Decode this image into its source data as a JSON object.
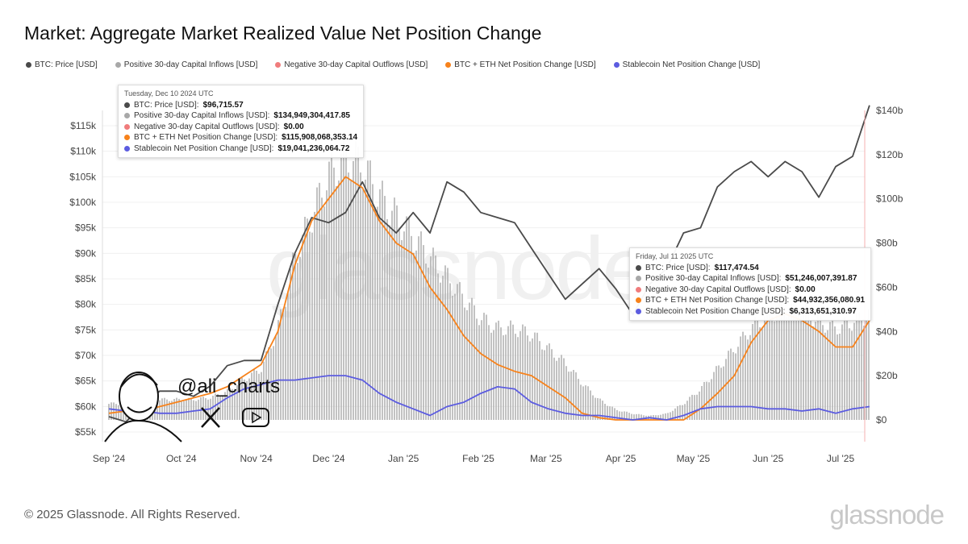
{
  "title": "Market: Aggregate Market Realized Value Net Position Change",
  "legend": [
    {
      "label": "BTC: Price [USD]",
      "color": "#4a4a4a"
    },
    {
      "label": "Positive 30-day Capital Inflows [USD]",
      "color": "#a8a8a8"
    },
    {
      "label": "Negative 30-day Capital Outflows [USD]",
      "color": "#f07c7c"
    },
    {
      "label": "BTC + ETH Net Position Change [USD]",
      "color": "#f7821b"
    },
    {
      "label": "Stablecoin Net Position Change [USD]",
      "color": "#5c5ce0"
    }
  ],
  "tooltips": [
    {
      "date": "Tuesday, Dec 10 2024 UTC",
      "rows": [
        {
          "label": "BTC: Price [USD]: ",
          "value": "$96,715.57",
          "color": "#4a4a4a"
        },
        {
          "label": "Positive 30-day Capital Inflows [USD]: ",
          "value": "$134,949,304,417.85",
          "color": "#a8a8a8"
        },
        {
          "label": "Negative 30-day Capital Outflows [USD]: ",
          "value": "$0.00",
          "color": "#f07c7c"
        },
        {
          "label": "BTC + ETH Net Position Change [USD]: ",
          "value": "$115,908,068,353.14",
          "color": "#f7821b"
        },
        {
          "label": "Stablecoin Net Position Change [USD]: ",
          "value": "$19,041,236,064.72",
          "color": "#5c5ce0"
        }
      ]
    },
    {
      "date": "Friday, Jul 11 2025 UTC",
      "rows": [
        {
          "label": "BTC: Price [USD]: ",
          "value": "$117,474.54",
          "color": "#4a4a4a"
        },
        {
          "label": "Positive 30-day Capital Inflows [USD]: ",
          "value": "$51,246,007,391.87",
          "color": "#a8a8a8"
        },
        {
          "label": "Negative 30-day Capital Outflows [USD]: ",
          "value": "$0.00",
          "color": "#f07c7c"
        },
        {
          "label": "BTC + ETH Net Position Change [USD]: ",
          "value": "$44,932,356,080.91",
          "color": "#f7821b"
        },
        {
          "label": "Stablecoin Net Position Change [USD]: ",
          "value": "$6,313,651,310.97",
          "color": "#5c5ce0"
        }
      ]
    }
  ],
  "watermark": "glassnode",
  "handle": "@ali_charts",
  "footer": "© 2025 Glassnode. All Rights Reserved.",
  "brand": "glassnode",
  "chart_data": {
    "type": "line",
    "title": "Market: Aggregate Market Realized Value Net Position Change",
    "x_ticks": [
      "Sep '24",
      "Oct '24",
      "Nov '24",
      "Dec '24",
      "Jan '25",
      "Feb '25",
      "Mar '25",
      "Apr '25",
      "May '25",
      "Jun '25",
      "Jul '25"
    ],
    "x_tick_dates": [
      "2024-09-01",
      "2024-10-01",
      "2024-11-01",
      "2024-12-01",
      "2025-01-01",
      "2025-02-01",
      "2025-03-01",
      "2025-04-01",
      "2025-05-01",
      "2025-06-01",
      "2025-07-01"
    ],
    "y_left": {
      "range": [
        53000,
        120000
      ],
      "ticks": [
        55000,
        60000,
        65000,
        70000,
        75000,
        80000,
        85000,
        90000,
        95000,
        100000,
        105000,
        110000,
        115000
      ],
      "labels": [
        "$55k",
        "$60k",
        "$65k",
        "$70k",
        "$75k",
        "$80k",
        "$85k",
        "$90k",
        "$95k",
        "$100k",
        "$105k",
        "$110k",
        "$115k"
      ]
    },
    "y_right": {
      "range": [
        -10,
        140
      ],
      "ticks": [
        0,
        20,
        40,
        60,
        80,
        100,
        120,
        140
      ],
      "labels": [
        "$0",
        "$20b",
        "$40b",
        "$60b",
        "$80b",
        "$100b",
        "$120b",
        "$140b"
      ],
      "unit": "billion USD"
    },
    "x": [
      "2024-09-01",
      "2024-09-08",
      "2024-09-15",
      "2024-09-22",
      "2024-09-29",
      "2024-10-06",
      "2024-10-13",
      "2024-10-20",
      "2024-10-27",
      "2024-11-03",
      "2024-11-10",
      "2024-11-17",
      "2024-11-24",
      "2024-12-01",
      "2024-12-08",
      "2024-12-15",
      "2024-12-22",
      "2024-12-29",
      "2025-01-05",
      "2025-01-12",
      "2025-01-19",
      "2025-01-26",
      "2025-02-02",
      "2025-02-09",
      "2025-02-16",
      "2025-02-23",
      "2025-03-02",
      "2025-03-09",
      "2025-03-16",
      "2025-03-23",
      "2025-03-30",
      "2025-04-06",
      "2025-04-13",
      "2025-04-20",
      "2025-04-27",
      "2025-05-04",
      "2025-05-11",
      "2025-05-18",
      "2025-05-25",
      "2025-06-01",
      "2025-06-08",
      "2025-06-15",
      "2025-06-22",
      "2025-06-29",
      "2025-07-06",
      "2025-07-13"
    ],
    "series": [
      {
        "name": "BTC: Price [USD]",
        "axis": "left",
        "kind": "line",
        "color": "#4a4a4a",
        "values": [
          58000,
          57000,
          60000,
          63000,
          63000,
          62000,
          64000,
          68000,
          69000,
          69000,
          80000,
          90000,
          97000,
          96000,
          98000,
          104000,
          97000,
          94000,
          98000,
          94000,
          104000,
          102000,
          98000,
          97000,
          96000,
          91000,
          86000,
          81000,
          84000,
          87000,
          83000,
          78000,
          84000,
          87000,
          94000,
          95000,
          103000,
          106000,
          108000,
          105000,
          108000,
          106000,
          101000,
          107000,
          109000,
          119000
        ]
      },
      {
        "name": "Positive 30-day Capital Inflows [USD]",
        "axis": "right",
        "kind": "bar",
        "color": "#a8a8a8",
        "values": [
          8,
          8,
          9,
          10,
          10,
          10,
          11,
          14,
          20,
          25,
          45,
          80,
          100,
          120,
          130,
          125,
          110,
          100,
          90,
          80,
          70,
          60,
          50,
          45,
          45,
          42,
          35,
          28,
          18,
          10,
          5,
          3,
          2,
          3,
          8,
          15,
          25,
          35,
          45,
          52,
          55,
          55,
          48,
          45,
          48,
          52
        ]
      },
      {
        "name": "Negative 30-day Capital Outflows [USD]",
        "axis": "right",
        "kind": "bar",
        "color": "#f07c7c",
        "values": [
          0,
          0,
          0,
          0,
          0,
          0,
          0,
          0,
          0,
          0,
          0,
          0,
          0,
          0,
          0,
          0,
          0,
          0,
          0,
          0,
          0,
          0,
          0,
          0,
          0,
          0,
          0,
          0,
          0,
          0,
          0,
          0,
          0,
          0,
          0,
          0,
          0,
          0,
          0,
          0,
          0,
          0,
          0,
          0,
          0,
          0
        ]
      },
      {
        "name": "BTC + ETH Net Position Change [USD]",
        "axis": "right",
        "kind": "line",
        "color": "#f7821b",
        "values": [
          3,
          4,
          4,
          6,
          8,
          10,
          12,
          15,
          20,
          25,
          40,
          70,
          90,
          100,
          110,
          105,
          90,
          80,
          75,
          60,
          50,
          38,
          30,
          25,
          22,
          20,
          15,
          10,
          3,
          1,
          0,
          0,
          0,
          0,
          0,
          5,
          12,
          20,
          35,
          45,
          48,
          45,
          40,
          33,
          33,
          45
        ]
      },
      {
        "name": "Stablecoin Net Position Change [USD]",
        "axis": "right",
        "kind": "line",
        "color": "#5c5ce0",
        "values": [
          5,
          4,
          4,
          3,
          3,
          4,
          5,
          10,
          14,
          16,
          18,
          18,
          19,
          20,
          20,
          18,
          12,
          8,
          5,
          2,
          6,
          8,
          12,
          15,
          14,
          8,
          5,
          3,
          2,
          2,
          1,
          0,
          1,
          0,
          2,
          5,
          6,
          6,
          6,
          5,
          5,
          4,
          5,
          3,
          5,
          6
        ]
      }
    ],
    "grid": true,
    "legend_position": "top-left"
  }
}
